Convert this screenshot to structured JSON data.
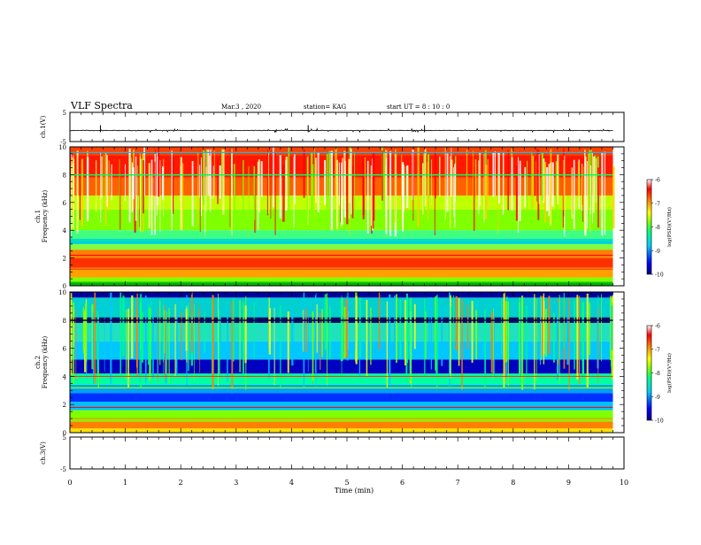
{
  "header": {
    "title": "VLF Spectra",
    "date": "Mar.3  , 2020",
    "station": "station= KAG",
    "start_time": "start UT =  8 : 10 : 0"
  },
  "chart_data": [
    {
      "type": "line",
      "name": "ch1-waveform",
      "ylabel": "ch.1(V)",
      "ylim": [
        -5,
        5
      ],
      "yticks": [
        "5",
        "-5"
      ],
      "xlim": [
        0,
        10
      ],
      "baseline": -1.2
    },
    {
      "type": "heatmap",
      "name": "ch1-spectrogram",
      "ylabel": "ch.1\nFrequency (kHz)",
      "ylabel_lines": [
        "ch.1",
        "Frequency  (kHz)"
      ],
      "ylim": [
        0,
        10
      ],
      "yticks": [
        "0",
        "2",
        "4",
        "6",
        "8",
        "10"
      ],
      "xlim": [
        0,
        9.8
      ],
      "colorbar": {
        "label": "log(PSD)(V²/Hz)",
        "range": [
          -10,
          -6
        ],
        "ticks": [
          "-6",
          "-7",
          "-8",
          "-9",
          "-10"
        ]
      }
    },
    {
      "type": "heatmap",
      "name": "ch2-spectrogram",
      "ylabel_lines": [
        "ch.2",
        "Frequency  (kHz)"
      ],
      "ylim": [
        0,
        10
      ],
      "yticks": [
        "0",
        "2",
        "4",
        "6",
        "8",
        "10"
      ],
      "xlim": [
        0,
        9.8
      ],
      "colorbar": {
        "label": "log(PSD)(V²/Hz)",
        "range": [
          -10,
          -6
        ],
        "ticks": [
          "-6",
          "-7",
          "-8",
          "-9",
          "-10"
        ]
      }
    },
    {
      "type": "line",
      "name": "ch3-waveform",
      "ylabel": "ch.3(V)",
      "ylim": [
        -5,
        5
      ],
      "yticks": [
        "5",
        "-5"
      ],
      "xlim": [
        0,
        10
      ]
    }
  ],
  "xaxis": {
    "label": "Time  (min)",
    "ticks": [
      "0",
      "1",
      "2",
      "3",
      "4",
      "5",
      "6",
      "7",
      "8",
      "9",
      "10"
    ],
    "range": [
      0,
      10
    ]
  },
  "colors": {
    "colormap": [
      "#000080",
      "#0000ff",
      "#00c8ff",
      "#00ff80",
      "#80ff00",
      "#ffff00",
      "#ff8000",
      "#ff0000",
      "#ffffff"
    ]
  }
}
